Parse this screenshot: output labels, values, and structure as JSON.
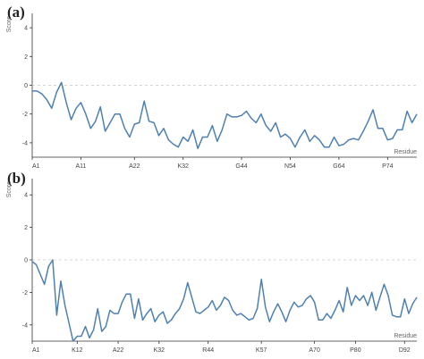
{
  "figure": {
    "panel_a_label": "(a)",
    "panel_b_label": "(b)"
  },
  "chart_data": [
    {
      "type": "line",
      "panel": "(a)",
      "ylabel": "Score",
      "xlabel": "Residue",
      "ylim": [
        -5,
        5
      ],
      "yticks": [
        4,
        2,
        0,
        -2,
        -4
      ],
      "reference_line": 0,
      "color": "#4f81b0",
      "xticks": [
        {
          "label": "A1",
          "index": 0
        },
        {
          "label": "A11",
          "index": 10
        },
        {
          "label": "A22",
          "index": 21
        },
        {
          "label": "K32",
          "index": 31
        },
        {
          "label": "G44",
          "index": 43
        },
        {
          "label": "N54",
          "index": 53
        },
        {
          "label": "G64",
          "index": 63
        },
        {
          "label": "P74",
          "index": 73
        }
      ],
      "n_points": 80,
      "values": [
        -0.4,
        -0.4,
        -0.6,
        -1.0,
        -1.6,
        -0.5,
        0.2,
        -1.2,
        -2.4,
        -1.6,
        -1.2,
        -2.0,
        -3.0,
        -2.5,
        -1.5,
        -3.2,
        -2.6,
        -2.0,
        -2.0,
        -3.0,
        -3.6,
        -2.7,
        -2.6,
        -1.1,
        -2.5,
        -2.6,
        -3.5,
        -3.0,
        -3.8,
        -4.1,
        -4.3,
        -3.6,
        -3.9,
        -3.1,
        -4.4,
        -3.6,
        -3.6,
        -2.8,
        -3.9,
        -3.1,
        -2.0,
        -2.2,
        -2.2,
        -2.1,
        -1.8,
        -2.3,
        -2.6,
        -2.0,
        -2.8,
        -3.2,
        -2.6,
        -3.6,
        -3.4,
        -3.7,
        -4.3,
        -3.6,
        -3.1,
        -3.9,
        -3.5,
        -3.8,
        -4.3,
        -4.3,
        -3.6,
        -4.2,
        -4.1,
        -3.8,
        -3.7,
        -3.8,
        -3.2,
        -2.5,
        -1.7,
        -3.0,
        -3.0,
        -3.8,
        -3.7,
        -3.1,
        -3.1,
        -1.8,
        -2.6,
        -2.0
      ]
    },
    {
      "type": "line",
      "panel": "(b)",
      "ylabel": "Score",
      "xlabel": "Residue",
      "ylim": [
        -5,
        5
      ],
      "yticks": [
        4,
        2,
        0,
        -2,
        -4
      ],
      "reference_line": 0,
      "color": "#4f81b0",
      "xticks": [
        {
          "label": "A1",
          "index": 0
        },
        {
          "label": "K12",
          "index": 11
        },
        {
          "label": "A22",
          "index": 21
        },
        {
          "label": "K32",
          "index": 31
        },
        {
          "label": "R44",
          "index": 43
        },
        {
          "label": "K57",
          "index": 56
        },
        {
          "label": "A70",
          "index": 69
        },
        {
          "label": "P80",
          "index": 79
        },
        {
          "label": "D92",
          "index": 91
        }
      ],
      "n_points": 95,
      "values": [
        -0.1,
        -0.3,
        -0.9,
        -1.5,
        -0.4,
        0.0,
        -3.4,
        -1.3,
        -2.8,
        -3.9,
        -5.0,
        -4.7,
        -4.7,
        -4.1,
        -4.8,
        -4.3,
        -3.0,
        -4.4,
        -4.1,
        -3.1,
        -3.3,
        -3.3,
        -2.6,
        -2.1,
        -2.1,
        -3.6,
        -2.4,
        -3.7,
        -3.3,
        -3.0,
        -3.8,
        -3.4,
        -3.2,
        -3.9,
        -3.7,
        -3.3,
        -3.0,
        -2.4,
        -1.4,
        -2.3,
        -3.2,
        -3.3,
        -3.1,
        -2.9,
        -2.5,
        -3.1,
        -2.8,
        -2.3,
        -2.5,
        -3.1,
        -3.4,
        -3.3,
        -3.5,
        -3.7,
        -3.6,
        -3.0,
        -1.2,
        -2.9,
        -3.8,
        -3.2,
        -2.7,
        -3.2,
        -3.8,
        -3.1,
        -2.6,
        -2.9,
        -2.8,
        -2.4,
        -2.2,
        -2.6,
        -3.7,
        -3.7,
        -3.3,
        -3.6,
        -3.1,
        -2.5,
        -3.2,
        -1.7,
        -2.8,
        -2.2,
        -2.5,
        -2.2,
        -2.8,
        -2.0,
        -3.1,
        -2.3,
        -1.5,
        -2.2,
        -3.4,
        -3.5,
        -3.5,
        -2.4,
        -3.3,
        -2.7,
        -2.3
      ]
    }
  ]
}
